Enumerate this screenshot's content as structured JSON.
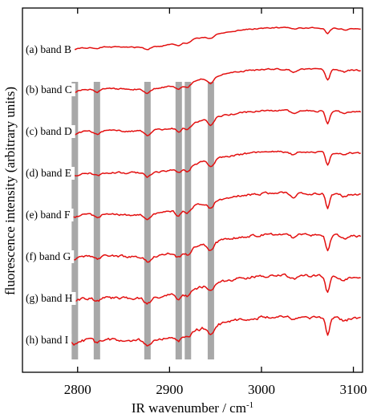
{
  "chart_data": {
    "type": "line",
    "xlabel": "IR wavenumber / cm",
    "xlabel_exponent": "-1",
    "ylabel": "fluorescence intensity (arbitrary units)",
    "xlim": [
      2740,
      3110
    ],
    "xticks": [
      {
        "value": 2800,
        "label": "2800"
      },
      {
        "value": 2900,
        "label": "2900"
      },
      {
        "value": 3000,
        "label": "3000"
      },
      {
        "value": 3100,
        "label": "3100"
      }
    ],
    "highlight_bands": [
      2797,
      2821,
      2876,
      2910,
      2920,
      2945
    ],
    "series": [
      {
        "name": "(a) band B",
        "color": "#e31010",
        "seed": 11
      },
      {
        "name": "(b) band C",
        "color": "#e31010",
        "seed": 23
      },
      {
        "name": "(c) band D",
        "color": "#e31010",
        "seed": 37
      },
      {
        "name": "(d) band E",
        "color": "#e31010",
        "seed": 41
      },
      {
        "name": "(e) band F",
        "color": "#e31010",
        "seed": 53
      },
      {
        "name": "(f) band G",
        "color": "#e31010",
        "seed": 67
      },
      {
        "name": "(g) band H",
        "color": "#e31010",
        "seed": 79
      },
      {
        "name": "(h) band I",
        "color": "#e31010",
        "seed": 83
      }
    ]
  }
}
